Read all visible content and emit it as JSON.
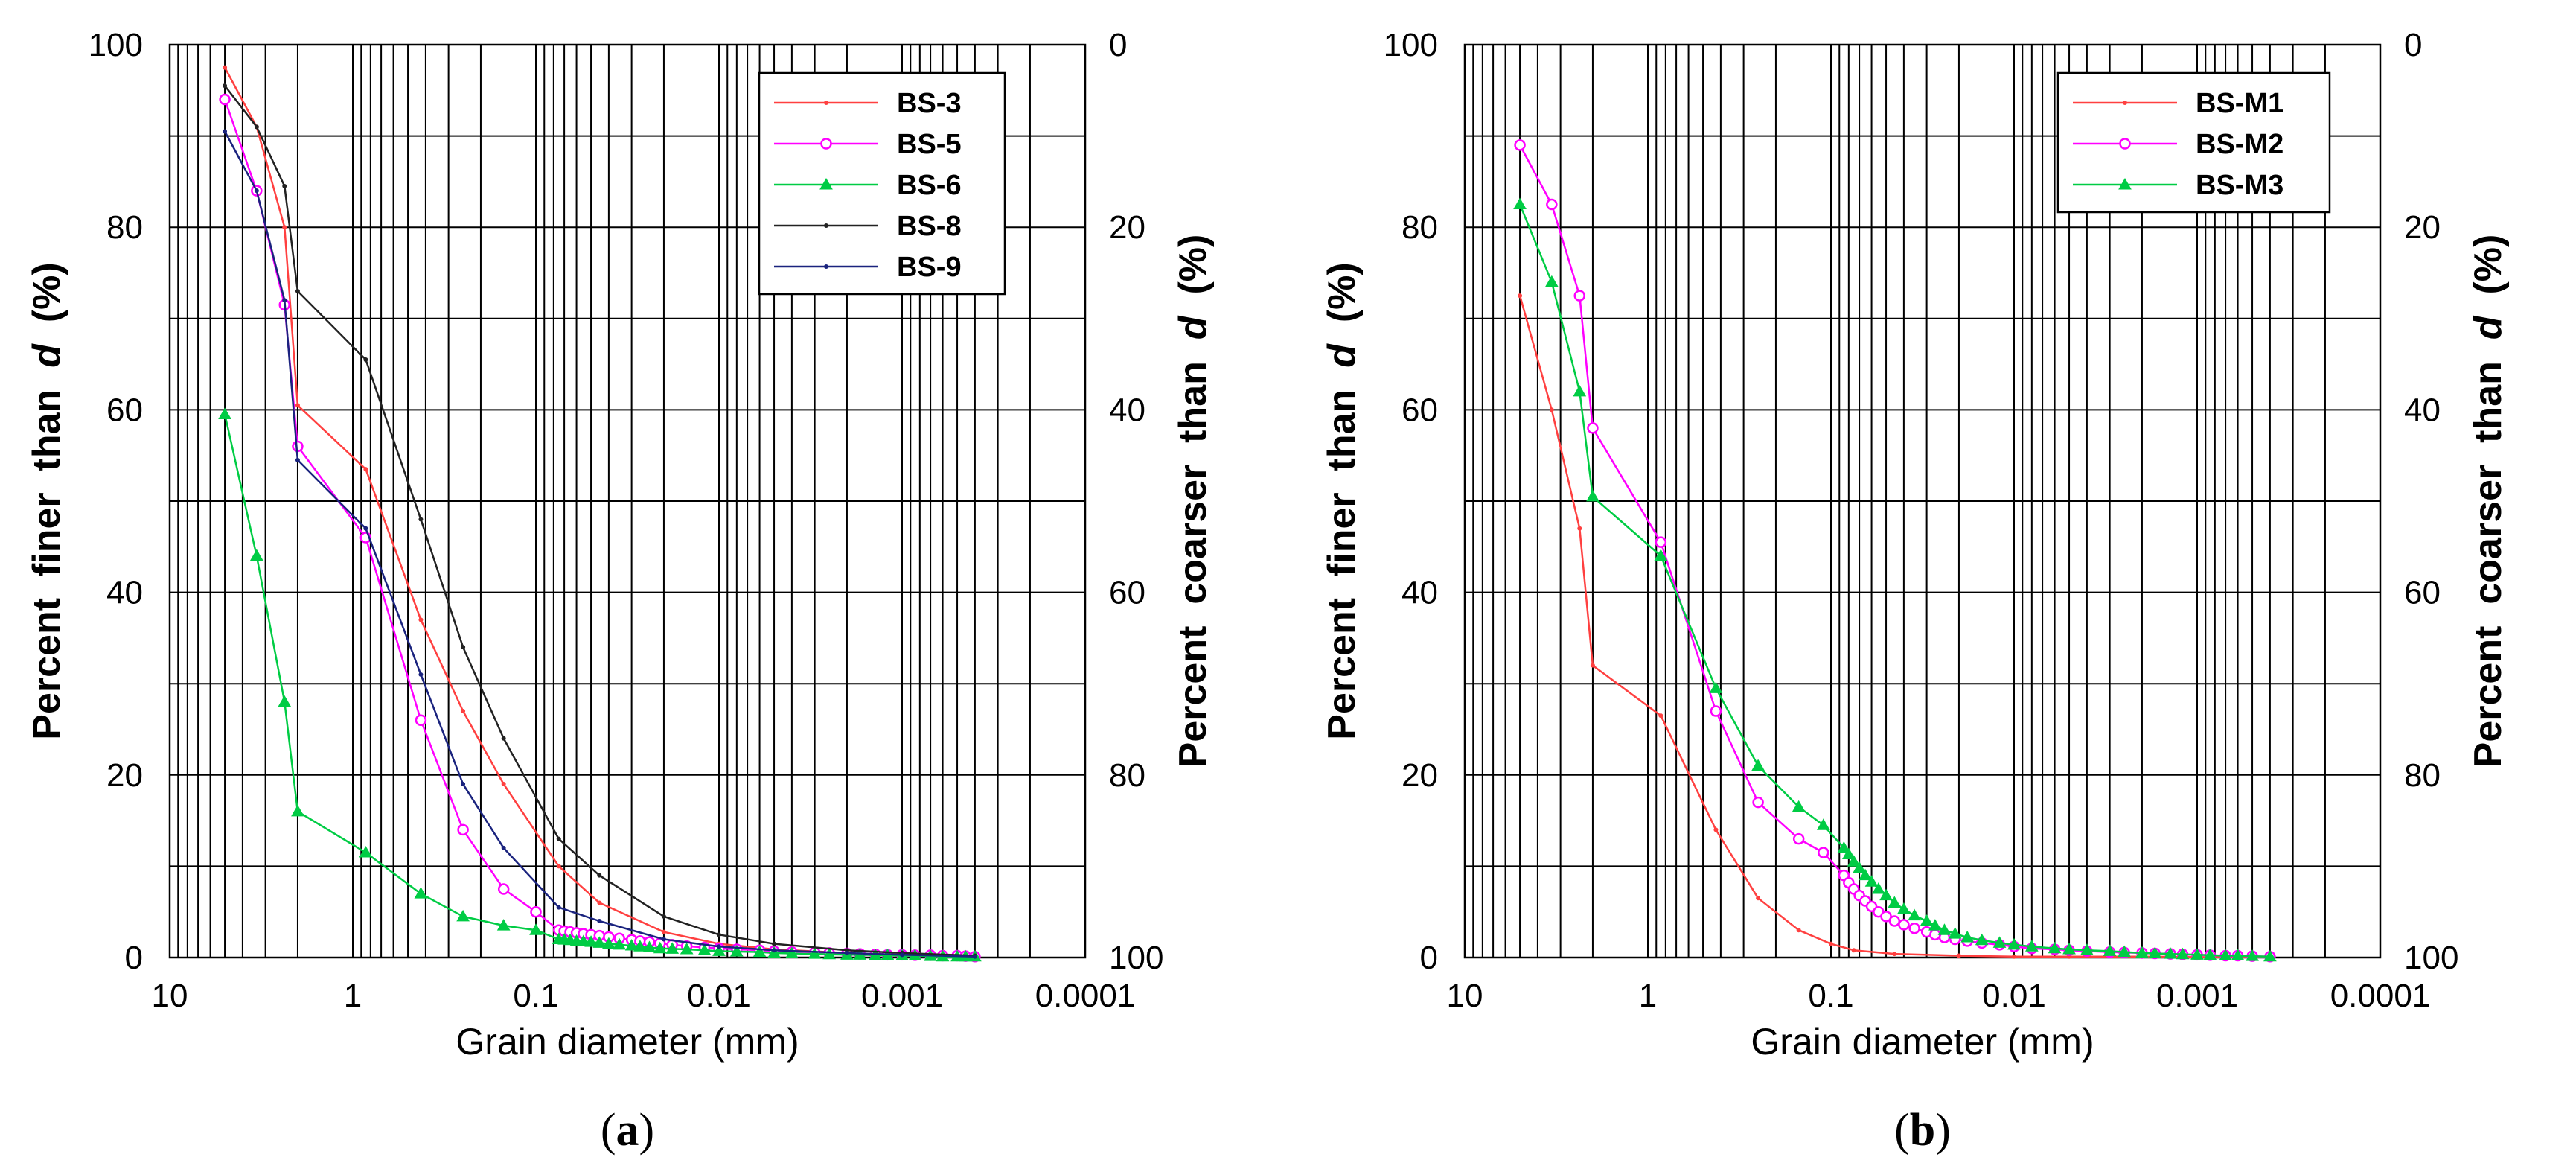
{
  "chart_data": [
    {
      "type": "line",
      "panel_label": "(a)",
      "panel_letter": "a",
      "xlabel": "Grain diameter (mm)",
      "xscale": "log",
      "xreversed": true,
      "xlim": [
        10,
        0.0001
      ],
      "xticks": [
        10,
        1,
        0.1,
        0.01,
        0.001,
        0.0001
      ],
      "xtick_labels": [
        "10",
        "1",
        "0.1",
        "0.01",
        "0.001",
        "0.0001"
      ],
      "ylabel_parts": [
        "Percent",
        "finer",
        "than",
        "d",
        "(%)"
      ],
      "ylim": [
        0,
        100
      ],
      "yticks": [
        0,
        20,
        40,
        60,
        80,
        100
      ],
      "ytick_labels": [
        "0",
        "20",
        "40",
        "60",
        "80",
        "100"
      ],
      "y2label_parts": [
        "Percent",
        "coarser",
        "than",
        "d",
        "(%)"
      ],
      "y2ticks": [
        0,
        20,
        40,
        60,
        80,
        100
      ],
      "y2tick_labels": [
        "100",
        "80",
        "60",
        "40",
        "20",
        "0"
      ],
      "grid": true,
      "legend_position": "top-right",
      "series": [
        {
          "name": "BS-3",
          "color": "#ff4040",
          "marker": "dot",
          "x": [
            5,
            3.35,
            2.36,
            2,
            0.85,
            0.425,
            0.25,
            0.15,
            0.075,
            0.045,
            0.02,
            0.01,
            0.005,
            0.002,
            0.001,
            0.0004
          ],
          "y": [
            97.5,
            91,
            80,
            60.5,
            53.5,
            37,
            27,
            19,
            10,
            6,
            2.8,
            1.5,
            0.9,
            0.5,
            0.3,
            0.1
          ]
        },
        {
          "name": "BS-5",
          "color": "#ff00ff",
          "marker": "circle",
          "x": [
            5,
            3.35,
            2.36,
            2,
            0.85,
            0.425,
            0.25,
            0.15,
            0.1,
            0.075,
            0.07,
            0.065,
            0.06,
            0.055,
            0.05,
            0.045,
            0.04,
            0.035,
            0.03,
            0.027,
            0.024,
            0.021,
            0.018,
            0.015,
            0.012,
            0.01,
            0.008,
            0.006,
            0.005,
            0.004,
            0.003,
            0.0025,
            0.002,
            0.0017,
            0.0014,
            0.0012,
            0.001,
            0.00085,
            0.0007,
            0.0006,
            0.0005,
            0.00045,
            0.0004
          ],
          "y": [
            94,
            84,
            71.5,
            56,
            46,
            26,
            14,
            7.5,
            5,
            3,
            2.9,
            2.8,
            2.7,
            2.6,
            2.5,
            2.4,
            2.25,
            2.1,
            1.95,
            1.8,
            1.7,
            1.55,
            1.4,
            1.25,
            1.1,
            1.0,
            0.9,
            0.8,
            0.7,
            0.6,
            0.55,
            0.5,
            0.45,
            0.4,
            0.35,
            0.3,
            0.3,
            0.25,
            0.25,
            0.2,
            0.2,
            0.15,
            0.1
          ]
        },
        {
          "name": "BS-6",
          "color": "#00cc44",
          "marker": "triangle",
          "x": [
            5,
            3.35,
            2.36,
            2,
            0.85,
            0.425,
            0.25,
            0.15,
            0.1,
            0.075,
            0.07,
            0.065,
            0.06,
            0.055,
            0.05,
            0.045,
            0.04,
            0.035,
            0.03,
            0.027,
            0.024,
            0.021,
            0.018,
            0.015,
            0.012,
            0.01,
            0.008,
            0.006,
            0.005,
            0.004,
            0.003,
            0.0025,
            0.002,
            0.0017,
            0.0014,
            0.0012,
            0.001,
            0.00085,
            0.0007,
            0.0006,
            0.0005,
            0.00045,
            0.0004
          ],
          "y": [
            59.5,
            44,
            28,
            16,
            11.5,
            7,
            4.5,
            3.5,
            3,
            2,
            1.95,
            1.9,
            1.8,
            1.75,
            1.7,
            1.6,
            1.5,
            1.4,
            1.3,
            1.2,
            1.1,
            1.0,
            0.95,
            0.9,
            0.8,
            0.7,
            0.65,
            0.6,
            0.5,
            0.45,
            0.4,
            0.35,
            0.3,
            0.3,
            0.25,
            0.25,
            0.2,
            0.2,
            0.15,
            0.1,
            0.1,
            0.1,
            0.1
          ]
        },
        {
          "name": "BS-8",
          "color": "#222222",
          "marker": "dot",
          "x": [
            5,
            3.35,
            2.36,
            2,
            0.85,
            0.425,
            0.25,
            0.15,
            0.075,
            0.045,
            0.02,
            0.01,
            0.005,
            0.002,
            0.001,
            0.0004
          ],
          "y": [
            95.5,
            91,
            84.5,
            73,
            65.5,
            48,
            34,
            24,
            13,
            9,
            4.5,
            2.5,
            1.5,
            0.8,
            0.5,
            0.2
          ]
        },
        {
          "name": "BS-9",
          "color": "#1a237e",
          "marker": "dot",
          "x": [
            5,
            3.35,
            2.36,
            2,
            0.85,
            0.425,
            0.25,
            0.15,
            0.075,
            0.045,
            0.02,
            0.01,
            0.005,
            0.002,
            0.001,
            0.0004
          ],
          "y": [
            90.5,
            84,
            72,
            54.5,
            47,
            31,
            19,
            12,
            5.5,
            4,
            2.0,
            1.2,
            0.8,
            0.5,
            0.3,
            0.1
          ]
        }
      ]
    },
    {
      "type": "line",
      "panel_label": "(b)",
      "panel_letter": "b",
      "xlabel": "Grain diameter (mm)",
      "xscale": "log",
      "xreversed": true,
      "xlim": [
        10,
        0.0001
      ],
      "xticks": [
        10,
        1,
        0.1,
        0.01,
        0.001,
        0.0001
      ],
      "xtick_labels": [
        "10",
        "1",
        "0.1",
        "0.01",
        "0.001",
        "0.0001"
      ],
      "ylabel_parts": [
        "Percent",
        "finer",
        "than",
        "d",
        "(%)"
      ],
      "ylim": [
        0,
        100
      ],
      "yticks": [
        0,
        20,
        40,
        60,
        80,
        100
      ],
      "ytick_labels": [
        "0",
        "20",
        "40",
        "60",
        "80",
        "100"
      ],
      "y2label_parts": [
        "Percent",
        "coarser",
        "than",
        "d",
        "(%)"
      ],
      "y2ticks": [
        0,
        20,
        40,
        60,
        80,
        100
      ],
      "y2tick_labels": [
        "100",
        "80",
        "60",
        "40",
        "20",
        "0"
      ],
      "grid": true,
      "legend_position": "top-right",
      "series": [
        {
          "name": "BS-M1",
          "color": "#ff4040",
          "marker": "dot",
          "x": [
            5,
            3.35,
            2.36,
            2,
            0.85,
            0.425,
            0.25,
            0.15,
            0.1,
            0.075,
            0.045,
            0.02,
            0.01,
            0.005,
            0.002,
            0.001,
            0.0004
          ],
          "y": [
            72.5,
            60,
            47,
            32,
            26.5,
            14,
            6.5,
            3,
            1.5,
            0.8,
            0.4,
            0.2,
            0.1,
            0.1,
            0.1,
            0.05,
            0.05
          ]
        },
        {
          "name": "BS-M2",
          "color": "#ff00ff",
          "marker": "circle",
          "x": [
            5,
            3.35,
            2.36,
            2,
            0.85,
            0.425,
            0.25,
            0.15,
            0.11,
            0.085,
            0.08,
            0.075,
            0.07,
            0.065,
            0.06,
            0.055,
            0.05,
            0.045,
            0.04,
            0.035,
            0.03,
            0.027,
            0.024,
            0.021,
            0.018,
            0.015,
            0.012,
            0.01,
            0.008,
            0.006,
            0.005,
            0.004,
            0.003,
            0.0025,
            0.002,
            0.0017,
            0.0014,
            0.0012,
            0.001,
            0.00085,
            0.0007,
            0.0006,
            0.0005,
            0.0004
          ],
          "y": [
            89,
            82.5,
            72.5,
            58,
            45.5,
            27,
            17,
            13,
            11.5,
            9,
            8.2,
            7.5,
            6.8,
            6.2,
            5.6,
            5.0,
            4.5,
            4.0,
            3.6,
            3.2,
            2.8,
            2.5,
            2.2,
            2.0,
            1.8,
            1.6,
            1.4,
            1.2,
            1.0,
            0.9,
            0.8,
            0.7,
            0.6,
            0.55,
            0.5,
            0.45,
            0.4,
            0.35,
            0.3,
            0.25,
            0.2,
            0.2,
            0.15,
            0.1
          ]
        },
        {
          "name": "BS-M3",
          "color": "#00cc44",
          "marker": "triangle",
          "x": [
            5,
            3.35,
            2.36,
            2,
            0.85,
            0.425,
            0.25,
            0.15,
            0.11,
            0.085,
            0.08,
            0.075,
            0.07,
            0.065,
            0.06,
            0.055,
            0.05,
            0.045,
            0.04,
            0.035,
            0.03,
            0.027,
            0.024,
            0.021,
            0.018,
            0.015,
            0.012,
            0.01,
            0.008,
            0.006,
            0.005,
            0.004,
            0.003,
            0.0025,
            0.002,
            0.0017,
            0.0014,
            0.0012,
            0.001,
            0.00085,
            0.0007,
            0.0006,
            0.0005,
            0.0004
          ],
          "y": [
            82.5,
            74,
            62,
            50.5,
            44,
            29.5,
            21,
            16.5,
            14.5,
            12,
            11.3,
            10.5,
            9.8,
            9.0,
            8.3,
            7.5,
            6.8,
            6.0,
            5.3,
            4.6,
            4.0,
            3.5,
            3.0,
            2.6,
            2.2,
            1.9,
            1.6,
            1.4,
            1.2,
            1.0,
            0.9,
            0.8,
            0.7,
            0.6,
            0.5,
            0.45,
            0.4,
            0.35,
            0.3,
            0.25,
            0.2,
            0.2,
            0.15,
            0.1
          ]
        }
      ]
    }
  ]
}
